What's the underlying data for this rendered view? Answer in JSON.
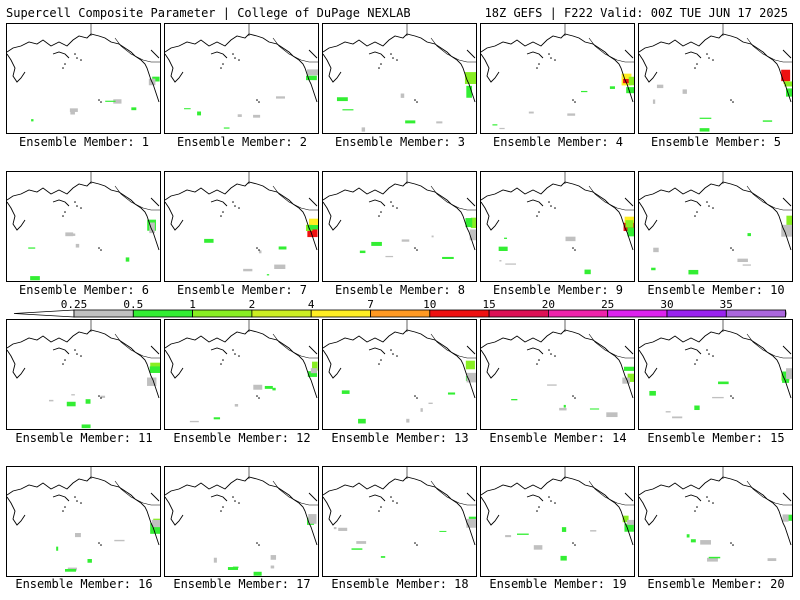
{
  "header": {
    "left": "Supercell Composite Parameter | College of DuPage NEXLAB",
    "right": "18Z GEFS | F222 Valid: 00Z TUE JUN 17 2025"
  },
  "members": [
    {
      "label": "Ensemble Member: 1",
      "level": "low"
    },
    {
      "label": "Ensemble Member: 2",
      "level": "low"
    },
    {
      "label": "Ensemble Member: 3",
      "level": "high"
    },
    {
      "label": "Ensemble Member: 4",
      "level": "high"
    },
    {
      "label": "Ensemble Member: 5",
      "level": "high"
    },
    {
      "label": "Ensemble Member: 6",
      "level": "low"
    },
    {
      "label": "Ensemble Member: 7",
      "level": "high"
    },
    {
      "label": "Ensemble Member: 8",
      "level": "mid"
    },
    {
      "label": "Ensemble Member: 9",
      "level": "high"
    },
    {
      "label": "Ensemble Member: 10",
      "level": "mid"
    },
    {
      "label": "Ensemble Member: 11",
      "level": "mid"
    },
    {
      "label": "Ensemble Member: 12",
      "level": "mid"
    },
    {
      "label": "Ensemble Member: 13",
      "level": "mid"
    },
    {
      "label": "Ensemble Member: 14",
      "level": "mid"
    },
    {
      "label": "Ensemble Member: 15",
      "level": "mid"
    },
    {
      "label": "Ensemble Member: 16",
      "level": "mid"
    },
    {
      "label": "Ensemble Member: 17",
      "level": "low"
    },
    {
      "label": "Ensemble Member: 18",
      "level": "low"
    },
    {
      "label": "Ensemble Member: 19",
      "level": "mid"
    },
    {
      "label": "Ensemble Member: 20",
      "level": "low"
    }
  ],
  "colorbar": {
    "labels": [
      "0.25",
      "0.5",
      "1",
      "2",
      "4",
      "7",
      "10",
      "15",
      "20",
      "25",
      "30",
      "35"
    ],
    "colors": [
      "#c0c0c0",
      "#33ee33",
      "#88ee22",
      "#ccee22",
      "#ffee22",
      "#ff9922",
      "#ee1111",
      "#dd1155",
      "#ee22aa",
      "#dd22ee",
      "#9922ee",
      "#aa66dd",
      "#22ddee"
    ]
  }
}
